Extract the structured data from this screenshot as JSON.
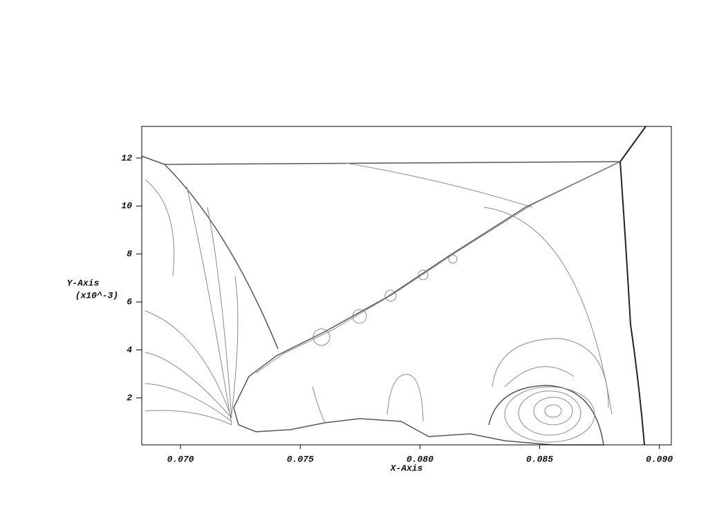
{
  "chart_data": {
    "type": "contour",
    "xlabel": "X-Axis",
    "ylabel": "Y-Axis",
    "ylabel_unit": "(x10^-3)",
    "xlim": [
      0.06838,
      0.0905
    ],
    "ylim": [
      0.04,
      13.32
    ],
    "xticks": [
      {
        "value": 0.07,
        "label": "0.070"
      },
      {
        "value": 0.075,
        "label": "0.075"
      },
      {
        "value": 0.08,
        "label": "0.080"
      },
      {
        "value": 0.085,
        "label": "0.085"
      },
      {
        "value": 0.09,
        "label": "0.090"
      }
    ],
    "yticks": [
      2,
      4,
      6,
      8,
      10,
      12
    ]
  }
}
